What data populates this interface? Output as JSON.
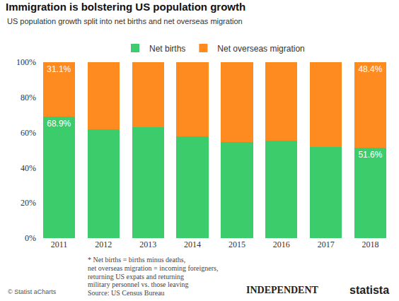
{
  "chart_data": {
    "type": "bar",
    "title": "Immigration is bolstering US population growth",
    "subtitle": "US population growth split into net births and net overseas migration",
    "categories": [
      "2011",
      "2012",
      "2013",
      "2014",
      "2015",
      "2016",
      "2017",
      "2018"
    ],
    "series": [
      {
        "name": "Net births",
        "color": "#3dcc6b",
        "values": [
          68.9,
          62,
          63,
          58,
          54.5,
          55.5,
          52,
          51.6
        ],
        "value_labels": [
          "68.9%",
          null,
          null,
          null,
          null,
          null,
          null,
          "51.6%"
        ]
      },
      {
        "name": "Net overseas migration",
        "color": "#fd8b1f",
        "values": [
          31.1,
          38,
          37,
          42,
          45.5,
          44.5,
          48,
          48.4
        ],
        "value_labels": [
          "31.1%",
          null,
          null,
          null,
          null,
          null,
          null,
          "48.4%"
        ]
      }
    ],
    "stacked": true,
    "data_labels": true,
    "legend": "top",
    "grid": false,
    "ylim": [
      0,
      100
    ],
    "yticks": [
      {
        "value": 0,
        "label": "0%"
      },
      {
        "value": 20,
        "label": "20%"
      },
      {
        "value": 40,
        "label": "40%"
      },
      {
        "value": 60,
        "label": "60%"
      },
      {
        "value": 80,
        "label": "80%"
      },
      {
        "value": 100,
        "label": "100%"
      }
    ],
    "annotations": [
      "* Net births = births minus deaths,",
      "net overseas migration = incoming foreigners,",
      "returning US expats and returning",
      "military personnel vs. those leaving",
      "Source: US Census Bureau",
      "© Statist aCharts",
      "INDEPENDENT",
      "statista"
    ]
  }
}
